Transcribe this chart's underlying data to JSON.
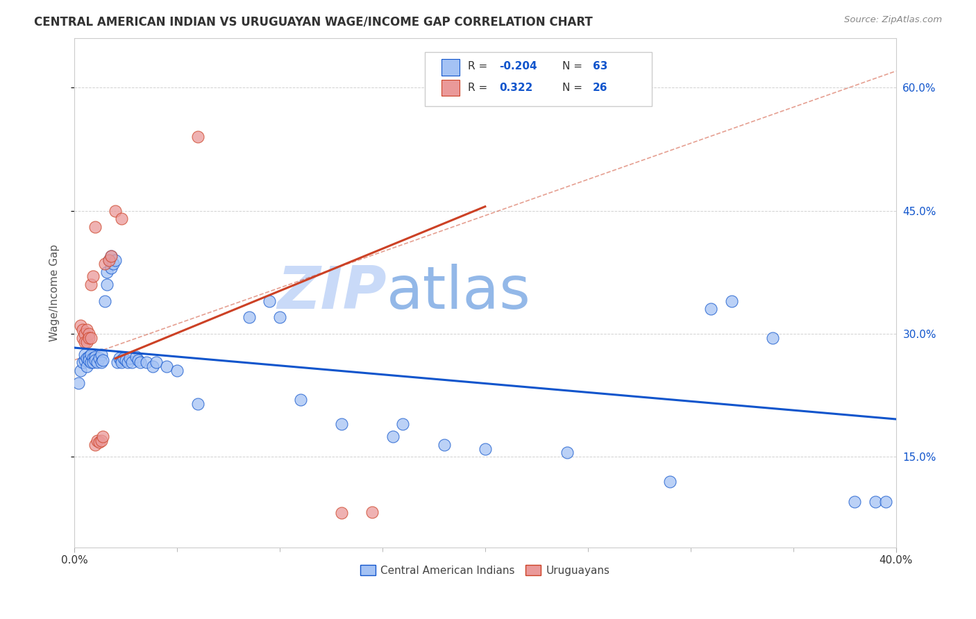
{
  "title": "CENTRAL AMERICAN INDIAN VS URUGUAYAN WAGE/INCOME GAP CORRELATION CHART",
  "source": "Source: ZipAtlas.com",
  "ylabel": "Wage/Income Gap",
  "xlim": [
    0.0,
    0.4
  ],
  "ylim": [
    0.04,
    0.66
  ],
  "yticks_right": [
    0.15,
    0.3,
    0.45,
    0.6
  ],
  "ytick_right_labels": [
    "15.0%",
    "30.0%",
    "45.0%",
    "60.0%"
  ],
  "blue_color": "#a4c2f4",
  "pink_color": "#ea9999",
  "blue_line_color": "#1155cc",
  "pink_line_color": "#cc4125",
  "blue_trend": [
    0.0,
    0.283,
    0.4,
    0.196
  ],
  "pink_trend": [
    0.0,
    0.268,
    0.4,
    0.455
  ],
  "pink_dash": [
    0.0,
    0.268,
    0.4,
    0.62
  ],
  "blue_scatter": [
    [
      0.002,
      0.24
    ],
    [
      0.003,
      0.255
    ],
    [
      0.004,
      0.265
    ],
    [
      0.005,
      0.268
    ],
    [
      0.005,
      0.275
    ],
    [
      0.006,
      0.27
    ],
    [
      0.006,
      0.26
    ],
    [
      0.007,
      0.272
    ],
    [
      0.007,
      0.268
    ],
    [
      0.008,
      0.265
    ],
    [
      0.008,
      0.275
    ],
    [
      0.009,
      0.27
    ],
    [
      0.009,
      0.265
    ],
    [
      0.01,
      0.272
    ],
    [
      0.01,
      0.268
    ],
    [
      0.011,
      0.265
    ],
    [
      0.012,
      0.27
    ],
    [
      0.013,
      0.275
    ],
    [
      0.013,
      0.265
    ],
    [
      0.014,
      0.268
    ],
    [
      0.015,
      0.34
    ],
    [
      0.016,
      0.36
    ],
    [
      0.016,
      0.375
    ],
    [
      0.017,
      0.39
    ],
    [
      0.018,
      0.395
    ],
    [
      0.018,
      0.38
    ],
    [
      0.019,
      0.385
    ],
    [
      0.02,
      0.39
    ],
    [
      0.021,
      0.265
    ],
    [
      0.022,
      0.27
    ],
    [
      0.023,
      0.268
    ],
    [
      0.023,
      0.265
    ],
    [
      0.024,
      0.27
    ],
    [
      0.025,
      0.268
    ],
    [
      0.026,
      0.265
    ],
    [
      0.027,
      0.27
    ],
    [
      0.028,
      0.265
    ],
    [
      0.03,
      0.272
    ],
    [
      0.031,
      0.268
    ],
    [
      0.032,
      0.265
    ],
    [
      0.035,
      0.265
    ],
    [
      0.038,
      0.26
    ],
    [
      0.04,
      0.265
    ],
    [
      0.045,
      0.26
    ],
    [
      0.05,
      0.255
    ],
    [
      0.06,
      0.215
    ],
    [
      0.085,
      0.32
    ],
    [
      0.095,
      0.34
    ],
    [
      0.1,
      0.32
    ],
    [
      0.11,
      0.22
    ],
    [
      0.13,
      0.19
    ],
    [
      0.16,
      0.19
    ],
    [
      0.18,
      0.165
    ],
    [
      0.2,
      0.16
    ],
    [
      0.24,
      0.155
    ],
    [
      0.29,
      0.12
    ],
    [
      0.31,
      0.33
    ],
    [
      0.32,
      0.34
    ],
    [
      0.34,
      0.295
    ],
    [
      0.38,
      0.095
    ],
    [
      0.39,
      0.095
    ],
    [
      0.395,
      0.095
    ],
    [
      0.155,
      0.175
    ]
  ],
  "pink_scatter": [
    [
      0.003,
      0.31
    ],
    [
      0.004,
      0.305
    ],
    [
      0.004,
      0.295
    ],
    [
      0.005,
      0.3
    ],
    [
      0.005,
      0.29
    ],
    [
      0.006,
      0.305
    ],
    [
      0.006,
      0.29
    ],
    [
      0.007,
      0.3
    ],
    [
      0.007,
      0.295
    ],
    [
      0.008,
      0.295
    ],
    [
      0.008,
      0.36
    ],
    [
      0.009,
      0.37
    ],
    [
      0.01,
      0.43
    ],
    [
      0.01,
      0.165
    ],
    [
      0.011,
      0.17
    ],
    [
      0.012,
      0.168
    ],
    [
      0.013,
      0.17
    ],
    [
      0.014,
      0.175
    ],
    [
      0.015,
      0.385
    ],
    [
      0.017,
      0.39
    ],
    [
      0.018,
      0.395
    ],
    [
      0.02,
      0.45
    ],
    [
      0.023,
      0.44
    ],
    [
      0.06,
      0.54
    ],
    [
      0.13,
      0.082
    ],
    [
      0.145,
      0.083
    ]
  ],
  "watermark_zip": "ZIP",
  "watermark_atlas": "atlas",
  "watermark_color_zip": "#c9daf8",
  "watermark_color_atlas": "#93b8e8",
  "background_color": "#ffffff"
}
